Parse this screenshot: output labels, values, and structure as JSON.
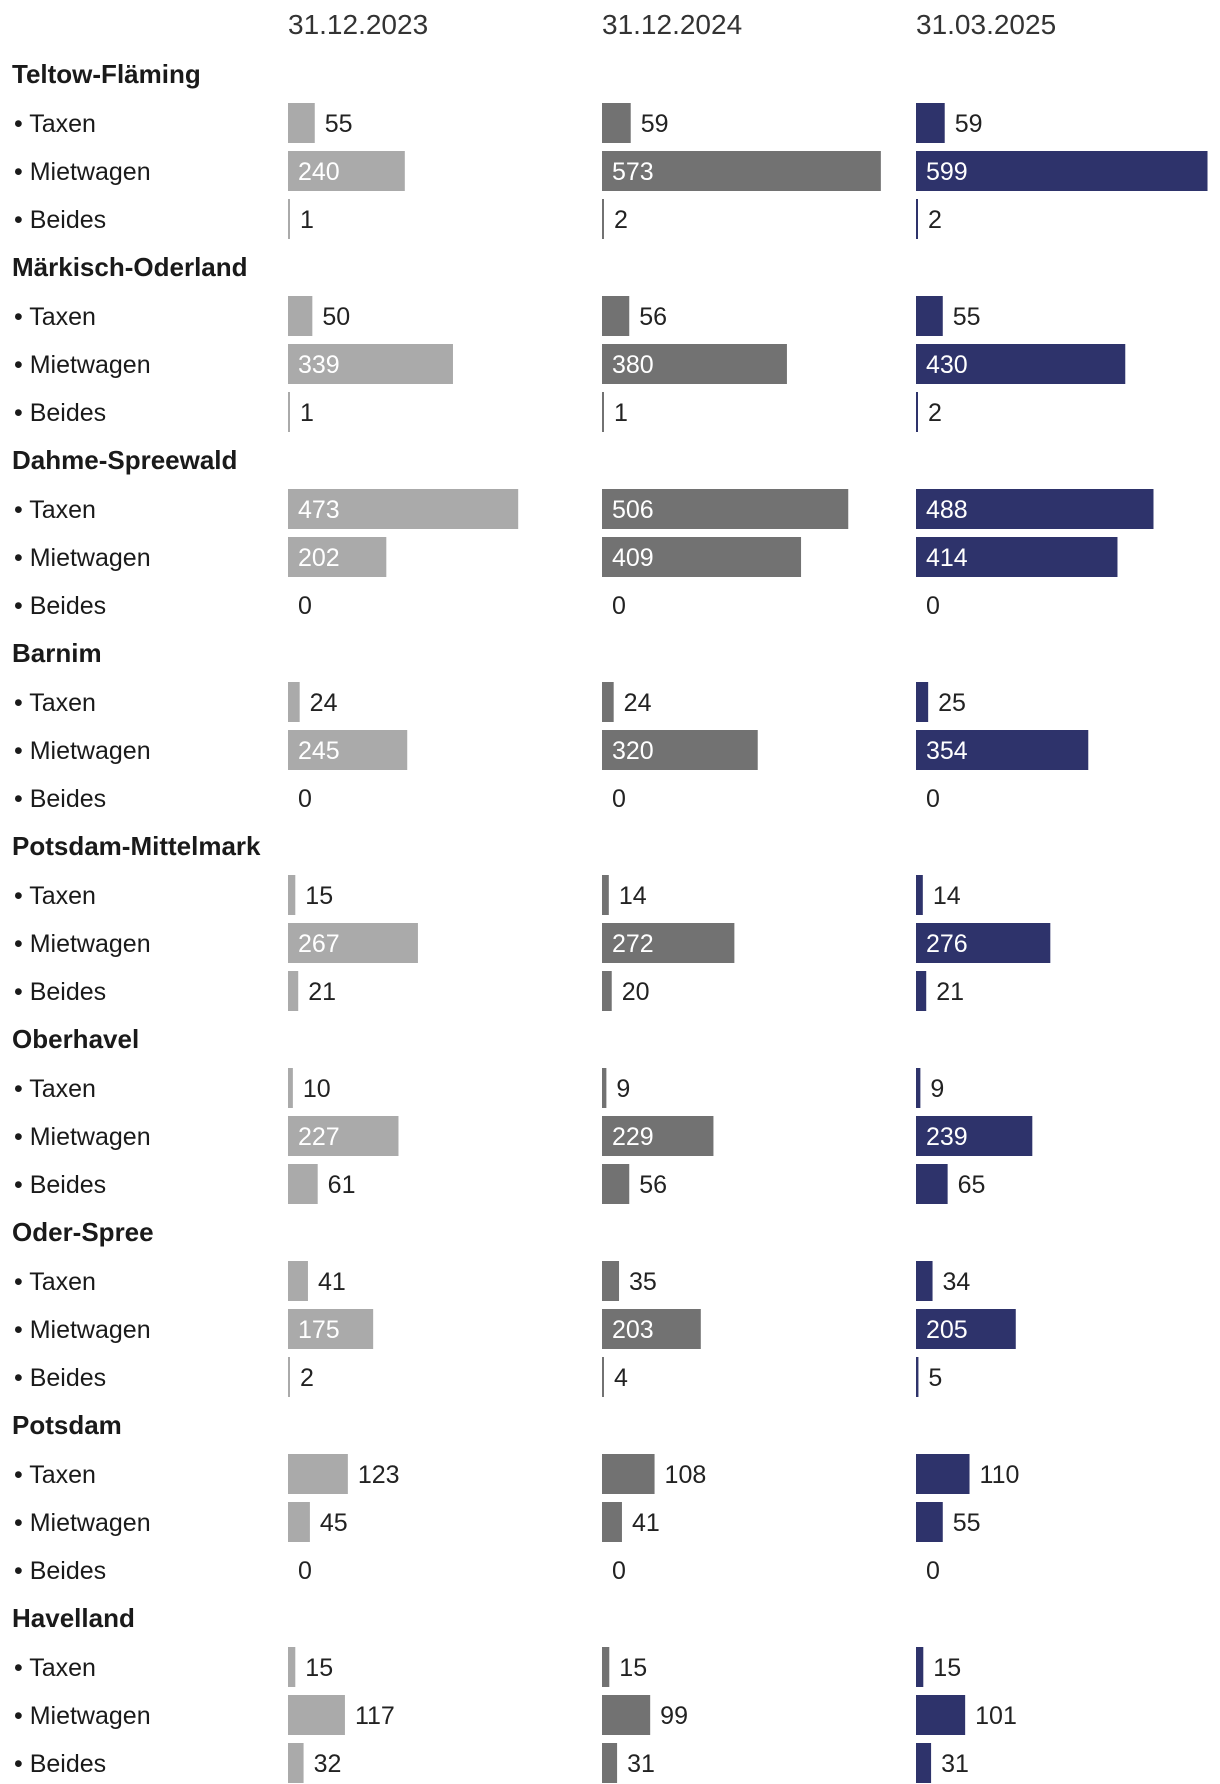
{
  "chart_data": {
    "type": "bar",
    "columns": [
      {
        "date": "31.12.2023",
        "color": "#aaaaaa"
      },
      {
        "date": "31.12.2024",
        "color": "#727272"
      },
      {
        "date": "31.03.2025",
        "color": "#2e336b"
      }
    ],
    "row_labels": [
      "• Taxen",
      "• Mietwagen",
      "• Beides"
    ],
    "xlim": [
      0,
      600
    ],
    "regions": [
      {
        "name": "Teltow-Fläming",
        "rows": [
          [
            55,
            59,
            59
          ],
          [
            240,
            573,
            599
          ],
          [
            1,
            2,
            2
          ]
        ]
      },
      {
        "name": "Märkisch-Oderland",
        "rows": [
          [
            50,
            56,
            55
          ],
          [
            339,
            380,
            430
          ],
          [
            1,
            1,
            2
          ]
        ]
      },
      {
        "name": "Dahme-Spreewald",
        "rows": [
          [
            473,
            506,
            488
          ],
          [
            202,
            409,
            414
          ],
          [
            0,
            0,
            0
          ]
        ]
      },
      {
        "name": "Barnim",
        "rows": [
          [
            24,
            24,
            25
          ],
          [
            245,
            320,
            354
          ],
          [
            0,
            0,
            0
          ]
        ]
      },
      {
        "name": "Potsdam-Mittelmark",
        "rows": [
          [
            15,
            14,
            14
          ],
          [
            267,
            272,
            276
          ],
          [
            21,
            20,
            21
          ]
        ]
      },
      {
        "name": "Oberhavel",
        "rows": [
          [
            10,
            9,
            9
          ],
          [
            227,
            229,
            239
          ],
          [
            61,
            56,
            65
          ]
        ]
      },
      {
        "name": "Oder-Spree",
        "rows": [
          [
            41,
            35,
            34
          ],
          [
            175,
            203,
            205
          ],
          [
            2,
            4,
            5
          ]
        ]
      },
      {
        "name": "Potsdam",
        "rows": [
          [
            123,
            108,
            110
          ],
          [
            45,
            41,
            55
          ],
          [
            0,
            0,
            0
          ]
        ]
      },
      {
        "name": "Havelland",
        "rows": [
          [
            15,
            15,
            15
          ],
          [
            117,
            99,
            101
          ],
          [
            32,
            31,
            31
          ]
        ]
      }
    ]
  }
}
